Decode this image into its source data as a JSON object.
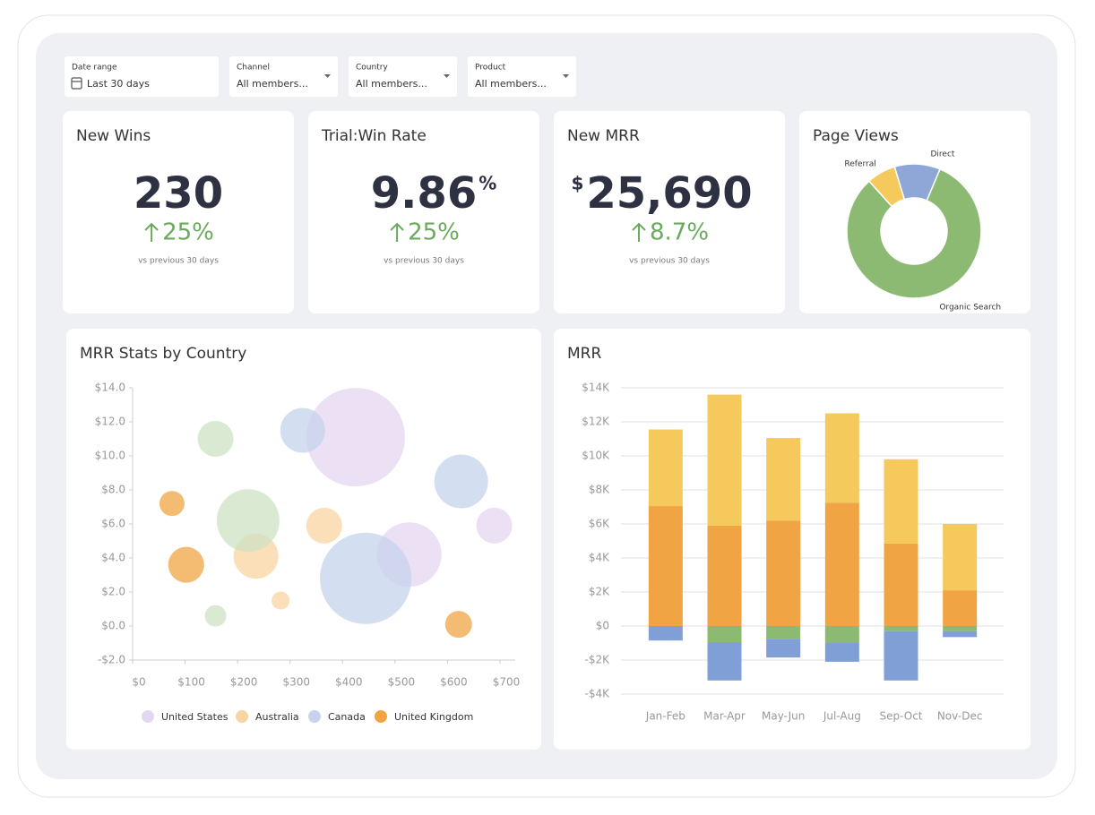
{
  "filters": [
    {
      "label": "Date range",
      "value": "Last 30 days"
    },
    {
      "label": "Channel",
      "value": "All members..."
    },
    {
      "label": "Country",
      "value": "All members..."
    },
    {
      "label": "Product",
      "value": "All members..."
    }
  ],
  "kpis": [
    {
      "title": "New Wins",
      "value": "230",
      "change": "25%",
      "note": "vs previous 30 days"
    },
    {
      "title": "Trial:Win Rate",
      "value": "9.86",
      "unit": "%",
      "change": "25%",
      "note": "vs previous 30 days"
    },
    {
      "title": "New MRR",
      "prefix": "$",
      "value": "25,690",
      "change": "8.7%",
      "note": "vs previous 30 days"
    }
  ],
  "chart_data": [
    {
      "type": "pie",
      "title": "Page Views",
      "categories": [
        "Referral",
        "Direct",
        "Organic Search"
      ],
      "values": [
        7,
        11,
        82
      ],
      "colors": [
        "#f5c95b",
        "#8ea7d6",
        "#8cba72"
      ]
    },
    {
      "type": "scatter",
      "title": "MRR Stats by Country",
      "xlim": [
        0,
        700
      ],
      "ylim": [
        -2,
        14
      ],
      "xticks": [
        {
          "value": 0,
          "label": "$0"
        },
        {
          "value": 100,
          "label": "$100"
        },
        {
          "value": 200,
          "label": "$200"
        },
        {
          "value": 300,
          "label": "$300"
        },
        {
          "value": 400,
          "label": "$400"
        },
        {
          "value": 500,
          "label": "$500"
        },
        {
          "value": 600,
          "label": "$600"
        },
        {
          "value": 700,
          "label": "$700"
        }
      ],
      "yticks": [
        {
          "value": 14,
          "label": "$14.0"
        },
        {
          "value": 12,
          "label": "$12.0"
        },
        {
          "value": 10,
          "label": "$10.0"
        },
        {
          "value": 8,
          "label": "$8.0"
        },
        {
          "value": 6,
          "label": "$6.0"
        },
        {
          "value": 4,
          "label": "$4.0"
        },
        {
          "value": 2,
          "label": "$2.0"
        },
        {
          "value": 0,
          "label": "$0.0"
        },
        {
          "value": -2,
          "label": "-$2.0"
        }
      ],
      "series": [
        {
          "name": "United States",
          "color": "#e4d6f0",
          "x": [
            425,
            527,
            689
          ],
          "y": [
            11.1,
            4.2,
            5.9
          ],
          "size": [
            55,
            36,
            20
          ]
        },
        {
          "name": "Australia",
          "color": "#f8d4a2",
          "x": [
            365,
            235,
            282
          ],
          "y": [
            5.9,
            4.1,
            1.5
          ],
          "size": [
            20,
            25,
            10
          ]
        },
        {
          "name": "Canada",
          "color": "#c5d3ec",
          "x": [
            324,
            626,
            444
          ],
          "y": [
            11.5,
            8.5,
            2.8
          ],
          "size": [
            25,
            30,
            51
          ]
        },
        {
          "name": "United Kingdom",
          "color": "#f0a444",
          "x": [
            75,
            102,
            621
          ],
          "y": [
            7.2,
            3.6,
            0.1
          ],
          "size": [
            14,
            20,
            15
          ]
        },
        {
          "color": "#cde2c3",
          "x": [
            158,
            220,
            158
          ],
          "y": [
            11.0,
            6.2,
            0.6
          ],
          "size": [
            20,
            35,
            12
          ]
        }
      ]
    },
    {
      "type": "bar",
      "stacked": true,
      "title": "MRR",
      "categories": [
        "Jan-Feb",
        "Mar-Apr",
        "May-Jun",
        "Jul-Aug",
        "Sep-Oct",
        "Nov-Dec"
      ],
      "ylim": [
        -4000,
        14000
      ],
      "grid": true,
      "yticks": [
        {
          "value": 14000,
          "label": "$14K"
        },
        {
          "value": 12000,
          "label": "$12K"
        },
        {
          "value": 10000,
          "label": "$10K"
        },
        {
          "value": 8000,
          "label": "$8K"
        },
        {
          "value": 6000,
          "label": "$6K"
        },
        {
          "value": 4000,
          "label": "$4K"
        },
        {
          "value": 2000,
          "label": "$2K"
        },
        {
          "value": 0,
          "label": "$0"
        },
        {
          "value": -2000,
          "label": "-$2K"
        },
        {
          "value": -4000,
          "label": "-$4K"
        }
      ],
      "series": [
        {
          "color": "#f0a444",
          "values": [
            7050,
            5900,
            6200,
            7250,
            4850,
            2100
          ]
        },
        {
          "color": "#f5c95b",
          "values": [
            4500,
            7700,
            4850,
            5250,
            4950,
            3900
          ]
        },
        {
          "color": "#8cba72",
          "values": [
            0,
            -950,
            -750,
            -1000,
            -300,
            -300
          ]
        },
        {
          "color": "#7f9fd6",
          "values": [
            -850,
            -2250,
            -1100,
            -1100,
            -2900,
            -350
          ]
        }
      ]
    }
  ]
}
